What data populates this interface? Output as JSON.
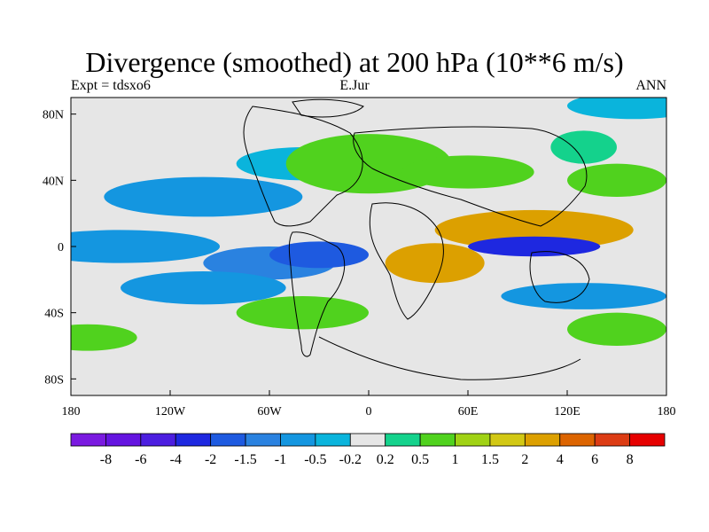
{
  "header": {
    "title": "Divergence (smoothed) at 200 hPa (10**6 m/s)",
    "left": "Expt = tdsxo6",
    "center": "E.Jur",
    "right": "ANN"
  },
  "map": {
    "lon_range": [
      180,
      -180
    ],
    "lat_range": [
      -90,
      90
    ],
    "x_ticks": [
      {
        "value": 180,
        "label": "180"
      },
      {
        "value": -120,
        "label": "120W"
      },
      {
        "value": -60,
        "label": "60W"
      },
      {
        "value": 0,
        "label": "0"
      },
      {
        "value": 60,
        "label": "60E"
      },
      {
        "value": 120,
        "label": "120E"
      },
      {
        "value": 180,
        "label": "180"
      }
    ],
    "y_ticks": [
      {
        "value": 80,
        "label": "80N"
      },
      {
        "value": 40,
        "label": "40N"
      },
      {
        "value": 0,
        "label": "0"
      },
      {
        "value": -40,
        "label": "40S"
      },
      {
        "value": -80,
        "label": "80S"
      }
    ]
  },
  "colorbar": {
    "colors": [
      "#7a1ae0",
      "#6414e0",
      "#4c1ee0",
      "#1e28e0",
      "#1e5ae0",
      "#2a82e0",
      "#1496e0",
      "#0ab4dc",
      "#e6e6e6",
      "#14d28c",
      "#50d21e",
      "#a0d214",
      "#d2c814",
      "#dca000",
      "#dc6400",
      "#dc3c14",
      "#e60000"
    ],
    "labels": [
      "-8",
      "-6",
      "-4",
      "-2",
      "-1.5",
      "-1",
      "-0.5",
      "-0.2",
      "0.2",
      "0.5",
      "1",
      "1.5",
      "2",
      "4",
      "6",
      "8"
    ]
  },
  "field_blobs": [
    {
      "lon": 160,
      "lat": 85,
      "rx": 40,
      "ry": 8,
      "level": 7
    },
    {
      "lon": 150,
      "lat": 40,
      "rx": 30,
      "ry": 10,
      "level": 10
    },
    {
      "lon": -100,
      "lat": 30,
      "rx": 60,
      "ry": 12,
      "level": 6
    },
    {
      "lon": -40,
      "lat": 50,
      "rx": 40,
      "ry": 10,
      "level": 7
    },
    {
      "lon": 0,
      "lat": 50,
      "rx": 50,
      "ry": 18,
      "level": 10
    },
    {
      "lon": 60,
      "lat": 45,
      "rx": 40,
      "ry": 10,
      "level": 10
    },
    {
      "lon": 130,
      "lat": 60,
      "rx": 20,
      "ry": 10,
      "level": 9
    },
    {
      "lon": 100,
      "lat": 10,
      "rx": 60,
      "ry": 12,
      "level": 13
    },
    {
      "lon": 100,
      "lat": 0,
      "rx": 40,
      "ry": 6,
      "level": 3
    },
    {
      "lon": -150,
      "lat": 0,
      "rx": 60,
      "ry": 10,
      "level": 6
    },
    {
      "lon": -60,
      "lat": -10,
      "rx": 40,
      "ry": 10,
      "level": 5
    },
    {
      "lon": -30,
      "lat": -5,
      "rx": 30,
      "ry": 8,
      "level": 4
    },
    {
      "lon": -40,
      "lat": -40,
      "rx": 40,
      "ry": 10,
      "level": 10
    },
    {
      "lon": -100,
      "lat": -25,
      "rx": 50,
      "ry": 10,
      "level": 6
    },
    {
      "lon": 40,
      "lat": -10,
      "rx": 30,
      "ry": 12,
      "level": 13
    },
    {
      "lon": 130,
      "lat": -30,
      "rx": 50,
      "ry": 8,
      "level": 6
    },
    {
      "lon": 150,
      "lat": -50,
      "rx": 30,
      "ry": 10,
      "level": 10
    },
    {
      "lon": -170,
      "lat": -55,
      "rx": 30,
      "ry": 8,
      "level": 10
    }
  ]
}
